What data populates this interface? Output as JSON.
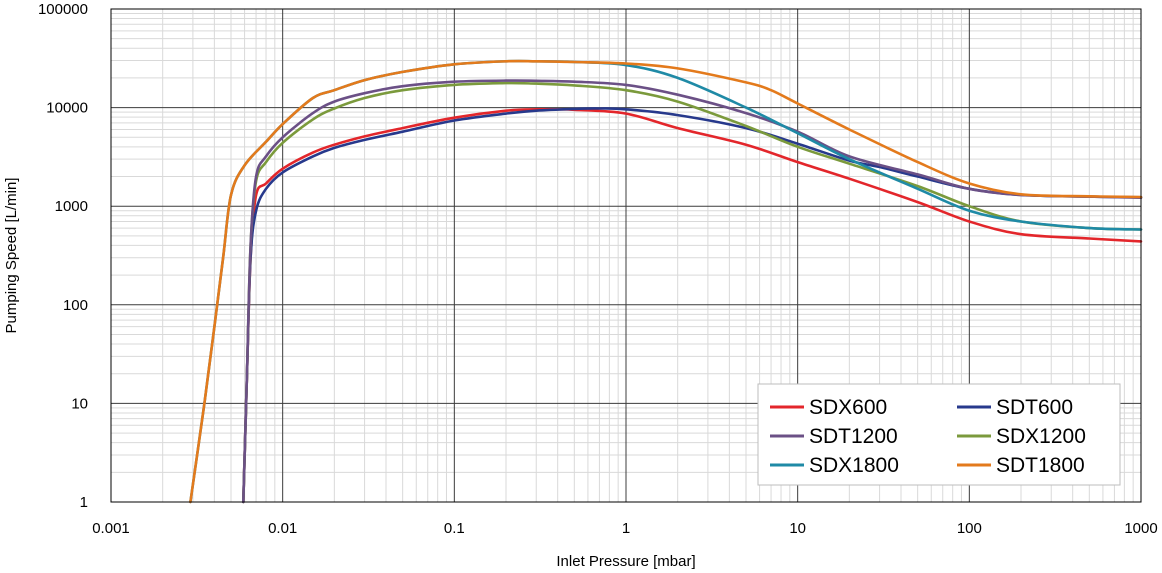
{
  "chart_data": {
    "type": "line",
    "xlabel": "Inlet Pressure [mbar]",
    "ylabel": "Pumping  Speed [L/min]",
    "xscale": "log",
    "yscale": "log",
    "xlim": [
      0.001,
      1000
    ],
    "ylim": [
      1,
      100000
    ],
    "x_ticks": [
      "0.001",
      "0.01",
      "0.1",
      "1",
      "10",
      "100",
      "1000"
    ],
    "y_ticks": [
      "1",
      "10",
      "100",
      "1000",
      "10000",
      "100000"
    ],
    "grid": true,
    "legend_position": "bottom-right",
    "series": [
      {
        "name": "SDX600",
        "color": "#e3262b",
        "x": [
          0.0059,
          0.0062,
          0.0065,
          0.007,
          0.008,
          0.01,
          0.015,
          0.02,
          0.03,
          0.05,
          0.1,
          0.2,
          0.3,
          0.5,
          1,
          2,
          5,
          10,
          20,
          50,
          100,
          200,
          500,
          1000
        ],
        "y": [
          1,
          20,
          300,
          1300,
          1700,
          2400,
          3500,
          4200,
          5100,
          6200,
          7900,
          9300,
          9600,
          9500,
          8700,
          6200,
          4200,
          2800,
          1900,
          1100,
          700,
          520,
          470,
          440
        ]
      },
      {
        "name": "SDT600",
        "color": "#27398c",
        "x": [
          0.0059,
          0.0062,
          0.0065,
          0.007,
          0.008,
          0.01,
          0.015,
          0.02,
          0.03,
          0.05,
          0.1,
          0.2,
          0.3,
          0.5,
          0.7,
          1,
          2,
          5,
          10,
          20,
          30,
          50,
          100,
          200,
          500,
          1000
        ],
        "y": [
          1,
          20,
          300,
          900,
          1500,
          2200,
          3200,
          3900,
          4700,
          5700,
          7400,
          8700,
          9300,
          9700,
          9800,
          9600,
          8400,
          6200,
          4300,
          2900,
          2500,
          2000,
          1500,
          1300,
          1250,
          1230
        ]
      },
      {
        "name": "SDT1200",
        "color": "#6b5086",
        "x": [
          0.0059,
          0.0062,
          0.0065,
          0.007,
          0.008,
          0.01,
          0.015,
          0.02,
          0.03,
          0.05,
          0.1,
          0.2,
          0.3,
          0.5,
          1,
          2,
          5,
          10,
          20,
          50,
          100,
          200,
          500,
          1000
        ],
        "y": [
          1,
          20,
          400,
          2000,
          3200,
          5000,
          8800,
          11500,
          14000,
          16500,
          18300,
          18800,
          18700,
          18300,
          17000,
          13500,
          8800,
          5700,
          3200,
          2100,
          1500,
          1300,
          1250,
          1220
        ]
      },
      {
        "name": "SDX1200",
        "color": "#7b9a3c",
        "x": [
          0.0059,
          0.0062,
          0.0065,
          0.007,
          0.008,
          0.01,
          0.015,
          0.02,
          0.03,
          0.05,
          0.1,
          0.2,
          0.3,
          0.5,
          1,
          2,
          5,
          10,
          20,
          50,
          100,
          200,
          500,
          1000
        ],
        "y": [
          1,
          20,
          400,
          1800,
          2800,
          4400,
          7600,
          9800,
          12500,
          15000,
          17000,
          17700,
          17500,
          16800,
          15000,
          11500,
          6500,
          4000,
          2700,
          1600,
          1000,
          700,
          600,
          580
        ]
      },
      {
        "name": "SDX1800",
        "color": "#1f8aa6",
        "x": [
          0.0029,
          0.0035,
          0.004,
          0.0045,
          0.005,
          0.006,
          0.008,
          0.01,
          0.015,
          0.02,
          0.03,
          0.05,
          0.1,
          0.2,
          0.3,
          0.5,
          1,
          2,
          5,
          10,
          20,
          50,
          100,
          200,
          500,
          1000
        ],
        "y": [
          1,
          10,
          60,
          300,
          1300,
          2600,
          4500,
          6800,
          12500,
          15000,
          19000,
          23000,
          27500,
          29500,
          29500,
          29000,
          27000,
          20000,
          10000,
          5500,
          3000,
          1500,
          900,
          700,
          600,
          580
        ]
      },
      {
        "name": "SDT1800",
        "color": "#e37a1c",
        "x": [
          0.0029,
          0.0035,
          0.004,
          0.0045,
          0.005,
          0.006,
          0.008,
          0.01,
          0.015,
          0.02,
          0.03,
          0.05,
          0.1,
          0.2,
          0.3,
          0.5,
          1,
          2,
          5,
          7,
          10,
          20,
          50,
          100,
          200,
          500,
          1000
        ],
        "y": [
          1,
          10,
          60,
          300,
          1300,
          2600,
          4500,
          6800,
          12500,
          15000,
          19000,
          23000,
          27500,
          29500,
          29500,
          29000,
          28000,
          25000,
          18000,
          15000,
          11000,
          6000,
          2800,
          1700,
          1320,
          1260,
          1240
        ]
      }
    ]
  }
}
